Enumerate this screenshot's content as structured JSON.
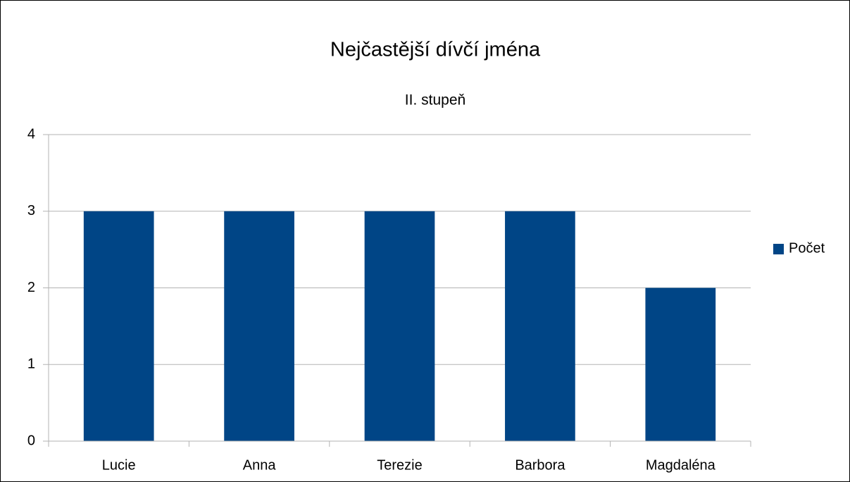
{
  "chart_data": {
    "type": "bar",
    "title": "Nejčastější dívčí jména",
    "subtitle": "II. stupeň",
    "categories": [
      "Lucie",
      "Anna",
      "Terezie",
      "Barbora",
      "Magdaléna"
    ],
    "series": [
      {
        "name": "Počet",
        "color": "#004586",
        "values": [
          3,
          3,
          3,
          3,
          2
        ]
      }
    ],
    "ylim": [
      0,
      4
    ],
    "yticks": [
      0,
      1,
      2,
      3,
      4
    ],
    "grid": true,
    "legend": "right"
  }
}
